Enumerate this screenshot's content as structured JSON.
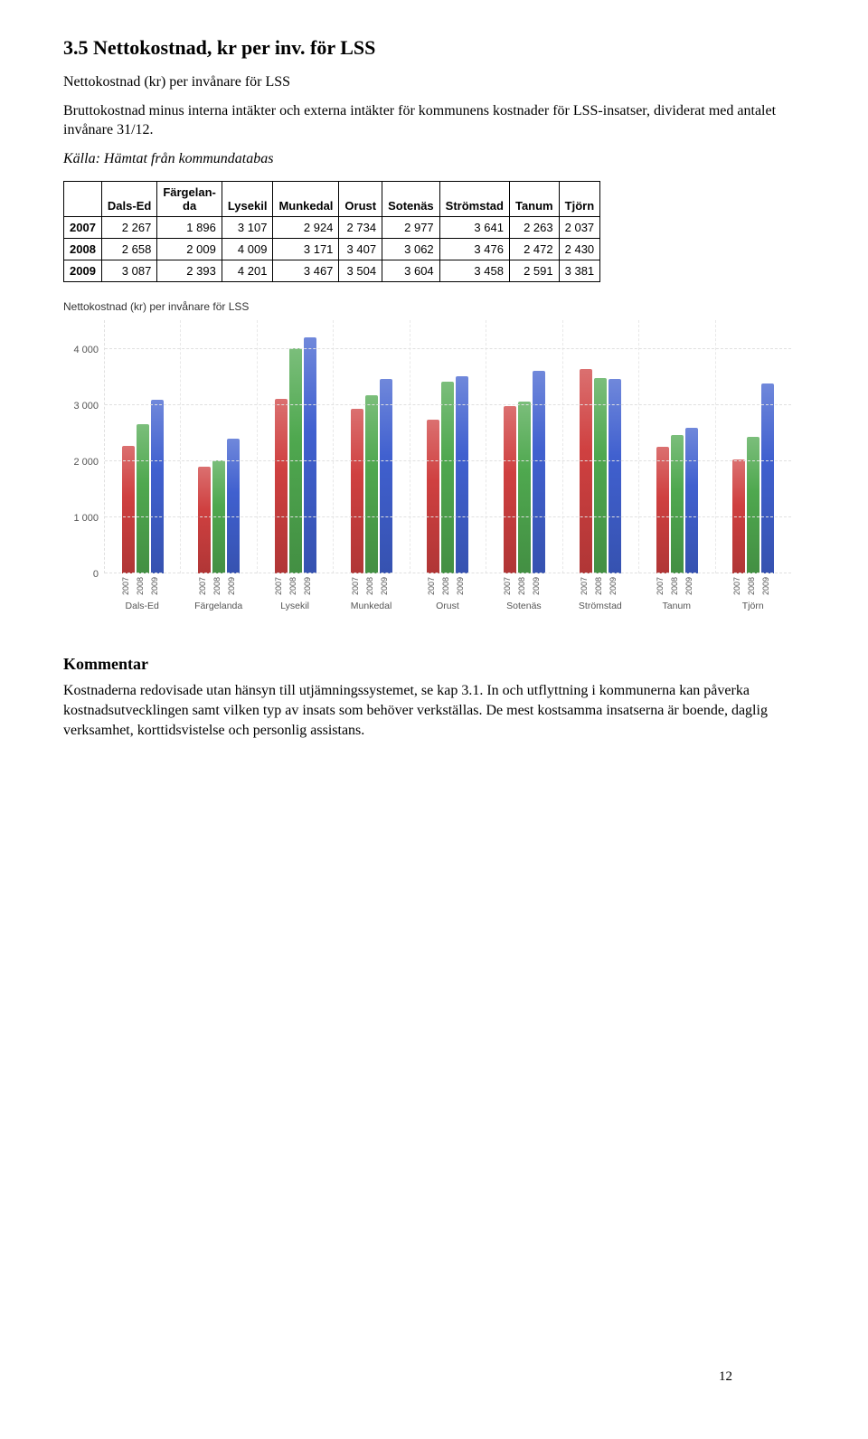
{
  "title": "3.5 Nettokostnad, kr per inv. för LSS",
  "intro": "Nettokostnad (kr) per invånare för LSS",
  "desc": "Bruttokostnad minus interna intäkter och externa intäkter för kommunens kostnader för LSS-insatser, dividerat med antalet invånare 31/12.",
  "source": "Källa: Hämtat från kommundatabas",
  "table": {
    "headers": [
      "Dals-Ed",
      "Färgelanda",
      "Lysekil",
      "Munkedal",
      "Orust",
      "Sotenäs",
      "Strömstad",
      "Tanum",
      "Tjörn"
    ],
    "rows": [
      {
        "year": "2007",
        "vals": [
          "2 267",
          "1 896",
          "3 107",
          "2 924",
          "2 734",
          "2 977",
          "3 641",
          "2 263",
          "2 037"
        ]
      },
      {
        "year": "2008",
        "vals": [
          "2 658",
          "2 009",
          "4 009",
          "3 171",
          "3 407",
          "3 062",
          "3 476",
          "2 472",
          "2 430"
        ]
      },
      {
        "year": "2009",
        "vals": [
          "3 087",
          "2 393",
          "4 201",
          "3 467",
          "3 504",
          "3 604",
          "3 458",
          "2 591",
          "3 381"
        ]
      }
    ]
  },
  "chart": {
    "title": "Nettokostnad (kr) per invånare för LSS",
    "ymax": 4500,
    "yticks": [
      0,
      1000,
      2000,
      3000,
      4000
    ],
    "colors": [
      "#cf4040",
      "#4fa84f",
      "#4060cf"
    ],
    "groups": [
      {
        "name": "Dals-Ed",
        "vals": [
          2267,
          2658,
          3087
        ]
      },
      {
        "name": "Färgelanda",
        "vals": [
          1896,
          2009,
          2393
        ]
      },
      {
        "name": "Lysekil",
        "vals": [
          3107,
          4009,
          4201
        ]
      },
      {
        "name": "Munkedal",
        "vals": [
          2924,
          3171,
          3467
        ]
      },
      {
        "name": "Orust",
        "vals": [
          2734,
          3407,
          3504
        ]
      },
      {
        "name": "Sotenäs",
        "vals": [
          2977,
          3062,
          3604
        ]
      },
      {
        "name": "Strömstad",
        "vals": [
          3641,
          3476,
          3458
        ]
      },
      {
        "name": "Tanum",
        "vals": [
          2263,
          2472,
          2591
        ]
      },
      {
        "name": "Tjörn",
        "vals": [
          2037,
          2430,
          3381
        ]
      }
    ],
    "years": [
      "2007",
      "2008",
      "2009"
    ],
    "plot_bg": "#ffffff",
    "grid_color": "#e0e0e0"
  },
  "sub_heading": "Kommentar",
  "comment": "Kostnaderna redovisade utan hänsyn till utjämningssystemet, se kap 3.1. In och utflyttning i kommunerna kan påverka kostnadsutvecklingen samt vilken typ av insats som behöver verkställas. De mest kostsamma insatserna är boende, daglig verksamhet, korttidsvistelse och personlig assistans.",
  "page_number": "12"
}
